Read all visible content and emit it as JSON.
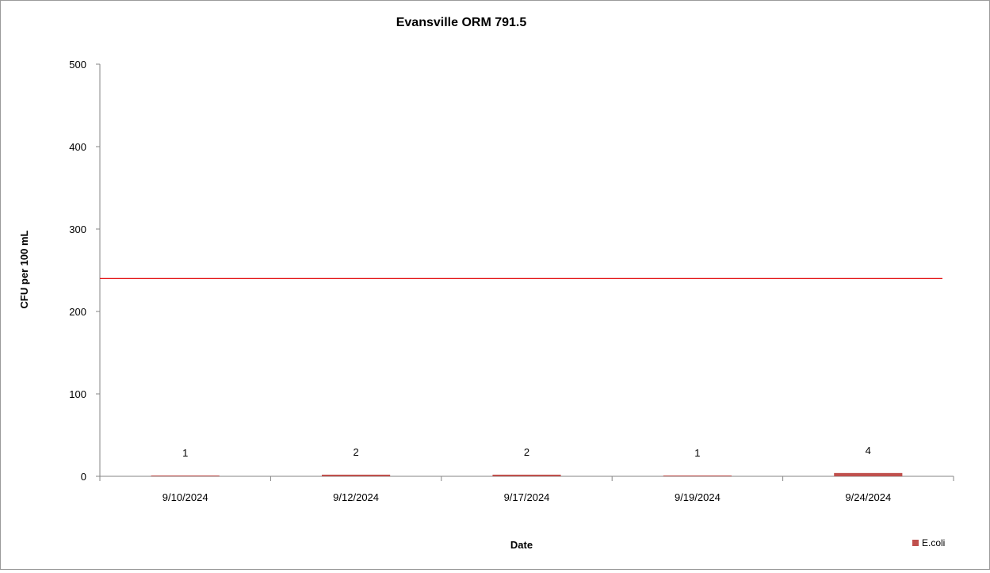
{
  "chart_data": {
    "type": "bar",
    "title": "Evansville ORM 791.5",
    "xlabel": "Date",
    "ylabel": "CFU per 100 mL",
    "categories": [
      "9/10/2024",
      "9/12/2024",
      "9/17/2024",
      "9/19/2024",
      "9/24/2024"
    ],
    "series": [
      {
        "name": "E.coli",
        "values": [
          1,
          2,
          2,
          1,
          4
        ],
        "color": "#c0504d"
      }
    ],
    "data_labels": [
      "1",
      "2",
      "2",
      "1",
      "4"
    ],
    "reference_line": {
      "value": 240,
      "color": "#e41a1c"
    },
    "ylim": [
      0,
      500
    ],
    "yticks": [
      0,
      100,
      200,
      300,
      400,
      500
    ],
    "grid": false,
    "legend_position": "bottom-right"
  }
}
